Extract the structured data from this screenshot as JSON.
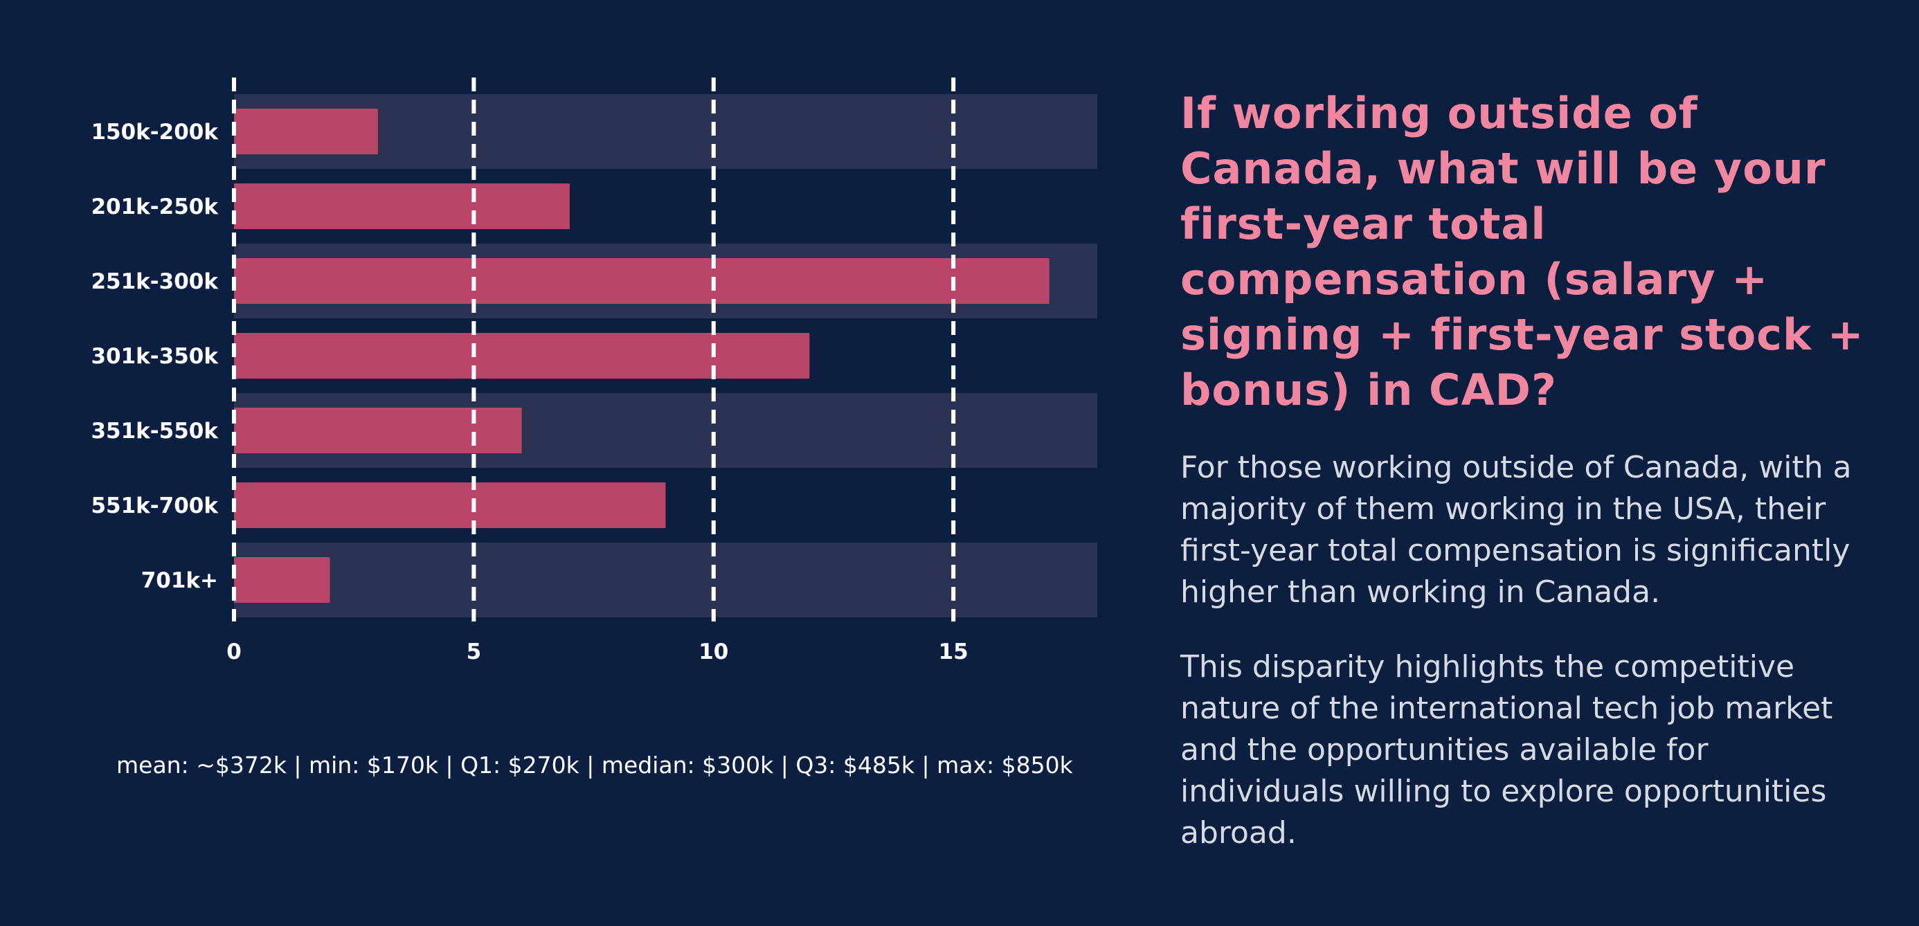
{
  "chart_data": {
    "type": "bar",
    "orientation": "horizontal",
    "categories": [
      "150k-200k",
      "201k-250k",
      "251k-300k",
      "301k-350k",
      "351k-550k",
      "551k-700k",
      "701k+"
    ],
    "values": [
      3,
      7,
      17,
      12,
      6,
      9,
      2
    ],
    "xlim": [
      0,
      18
    ],
    "xticks": [
      0,
      5,
      10,
      15
    ],
    "grid": "vertical dashed",
    "colors": {
      "background": "#0c1f41",
      "band": "#2c3352",
      "bar": "#b94568",
      "grid": "#ffffff"
    }
  },
  "stats_text": "mean: ~$372k | min: $170k | Q1: $270k | median: $300k | Q3: $485k | max: $850k",
  "panel": {
    "title": "If working outside of Canada, what will be your first-year total compensation (salary + signing + first-year stock + bonus) in CAD?",
    "paragraph1": "For those working outside of Canada, with a majority of them working in the USA, their first-year total compensation is significantly higher than working in Canada.",
    "paragraph2": "This disparity highlights the competitive nature of the international tech job market and the opportunities available for individuals willing to explore opportunities abroad.",
    "title_color": "#f0879f"
  }
}
